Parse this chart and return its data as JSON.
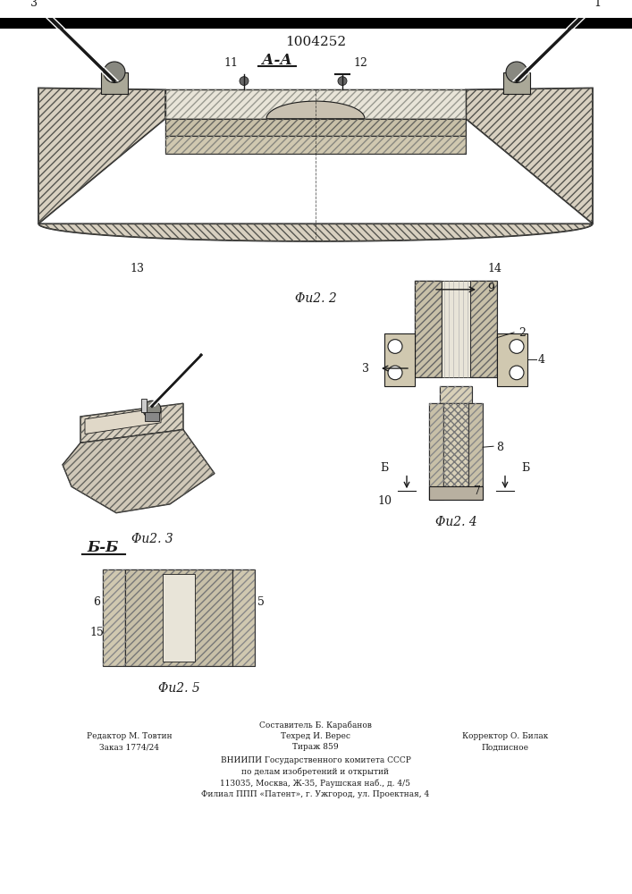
{
  "patent_number": "1004252",
  "section_aa": "А-А",
  "section_bb": "Б-Б",
  "fig2_label": "Φu2. 2",
  "fig3_label": "Φu2. 3",
  "fig4_label": "Φu2. 4",
  "fig5_label": "Φu2. 5",
  "footer_line1_left": "Редактор М. Товтин",
  "footer_line2_left": "Заказ 1774/24",
  "footer_line1_center": "Составитель Б. Карабанов",
  "footer_line2_center": "Техред И. Верес",
  "footer_line3_center": "Тираж 859",
  "footer_line1_right": "Корректор О. Билак",
  "footer_line2_right": "Подписное",
  "footer_vnipi": "ВНИИПИ Государственного комитета СССР",
  "footer_po": "по делам изобретений и открытий",
  "footer_addr1": "113035, Москва, Ж-35, Раушская наб., д. 4/5",
  "footer_addr2": "Филиал ППП «Патент», г. Ужгород, ул. Проектная, 4",
  "bg_color": "#ffffff",
  "line_color": "#1a1a1a"
}
